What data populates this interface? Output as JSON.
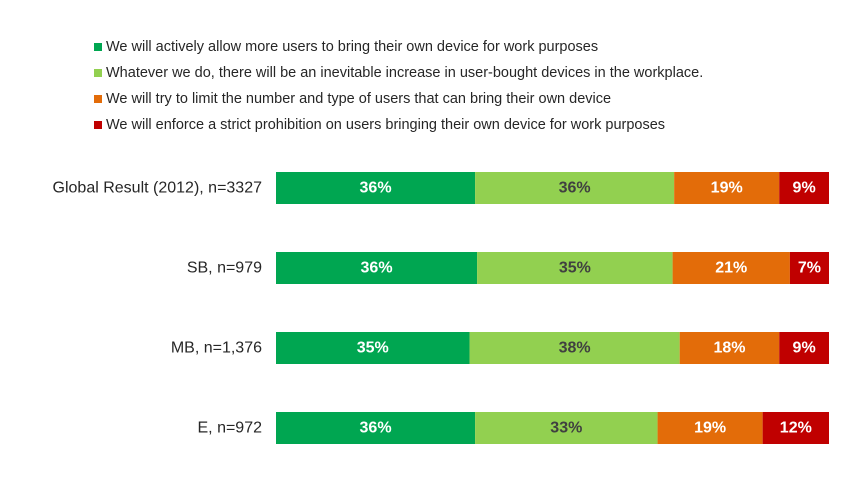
{
  "chart_data": {
    "type": "bar",
    "orientation": "horizontal",
    "stacked": "percent",
    "categories": [
      "Global Result (2012), n=3327",
      "SB, n=979",
      "MB, n=1,376",
      "E, n=972"
    ],
    "series": [
      {
        "name": "We will actively allow more users to bring their own device for work purposes",
        "color": "#00A651",
        "label_color": "#ffffff",
        "values": [
          36,
          36,
          35,
          36
        ],
        "labels": [
          "36%",
          "36%",
          "35%",
          "36%"
        ]
      },
      {
        "name": "Whatever we do, there will be an inevitable increase in user-bought devices in the workplace.",
        "color": "#92D050",
        "label_color": "#404040",
        "values": [
          36,
          35,
          38,
          33
        ],
        "labels": [
          "36%",
          "35%",
          "38%",
          "33%"
        ]
      },
      {
        "name": "We will try to limit the number and type of users that can bring their own device",
        "color": "#E36C09",
        "label_color": "#ffffff",
        "values": [
          19,
          21,
          18,
          19
        ],
        "labels": [
          "19%",
          "21%",
          "18%",
          "19%"
        ]
      },
      {
        "name": "We will enforce a strict prohibition on users bringing their own device for work purposes",
        "color": "#C00000",
        "label_color": "#ffffff",
        "values": [
          9,
          7,
          9,
          12
        ],
        "labels": [
          "9%",
          "7%",
          "9%",
          "12%"
        ]
      }
    ],
    "xlim": [
      0,
      100
    ],
    "legend_position": "top",
    "grid": false,
    "axis_visible": false
  }
}
